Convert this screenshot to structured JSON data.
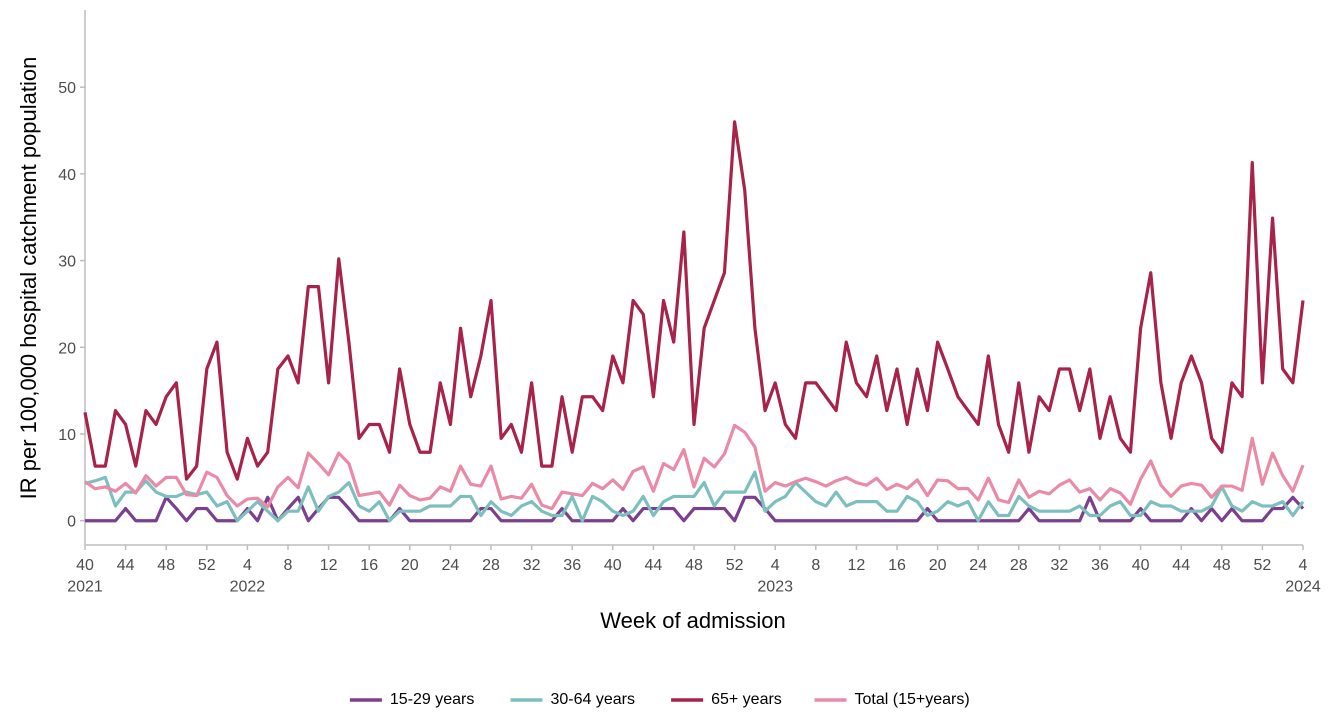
{
  "chart_data": {
    "type": "line",
    "x_label": "Week of admission",
    "y_label": "IR per 100,000 hospital catchment population",
    "categories": [
      "40\n2021",
      null,
      null,
      null,
      "44",
      null,
      null,
      null,
      "48",
      null,
      null,
      null,
      "52",
      null,
      null,
      null,
      "4\n2022",
      null,
      null,
      null,
      "8",
      null,
      null,
      null,
      "12",
      null,
      null,
      null,
      "16",
      null,
      null,
      null,
      "20",
      null,
      null,
      null,
      "24",
      null,
      null,
      null,
      "28",
      null,
      null,
      null,
      "32",
      null,
      null,
      null,
      "36",
      null,
      null,
      null,
      "40",
      null,
      null,
      null,
      "44",
      null,
      null,
      null,
      "48",
      null,
      null,
      null,
      "52",
      null,
      null,
      null,
      "4\n2023",
      null,
      null,
      null,
      "8",
      null,
      null,
      null,
      "12",
      null,
      null,
      null,
      "16",
      null,
      null,
      null,
      "20",
      null,
      null,
      null,
      "24",
      null,
      null,
      null,
      "28",
      null,
      null,
      null,
      "32",
      null,
      null,
      null,
      "36",
      null,
      null,
      null,
      "40",
      null,
      null,
      null,
      "44",
      null,
      null,
      null,
      "48",
      null,
      null,
      null,
      "52",
      null,
      null,
      null,
      "4\n2024"
    ],
    "series": [
      {
        "name": "15-29 years",
        "color": "#7b3f8f",
        "values": [
          0,
          0,
          0,
          0,
          1.4,
          0,
          0,
          0,
          2.7,
          1.4,
          0,
          1.4,
          1.4,
          0,
          0,
          0,
          1.4,
          0,
          2.7,
          0,
          1.4,
          2.7,
          0,
          1.4,
          2.7,
          2.7,
          1.4,
          0,
          0,
          0,
          0,
          1.4,
          0,
          0,
          0,
          0,
          0,
          0,
          0,
          1.4,
          1.4,
          0,
          0,
          0,
          0,
          0,
          0,
          1.4,
          0,
          0,
          0,
          0,
          0,
          1.4,
          0,
          1.4,
          1.4,
          1.4,
          1.4,
          0,
          1.4,
          1.4,
          1.4,
          1.4,
          0,
          2.7,
          2.7,
          1.4,
          0,
          0,
          0,
          0,
          0,
          0,
          0,
          0,
          0,
          0,
          0,
          0,
          0,
          0,
          0,
          1.4,
          0,
          0,
          0,
          0,
          0,
          0,
          0,
          0,
          0,
          1.4,
          0,
          0,
          0,
          0,
          0,
          2.7,
          0,
          0,
          0,
          0,
          1.4,
          0,
          0,
          0,
          0,
          1.4,
          0,
          1.4,
          0,
          1.4,
          0,
          0,
          0,
          1.4,
          1.4,
          2.7,
          1.4
        ]
      },
      {
        "name": "30-64 years",
        "color": "#7dbfbf",
        "values": [
          4.3,
          4.6,
          5.0,
          1.7,
          3.3,
          3.3,
          4.6,
          3.3,
          2.8,
          2.8,
          3.3,
          3.0,
          3.3,
          1.7,
          2.2,
          0.0,
          1.1,
          2.2,
          1.1,
          0.0,
          1.1,
          1.1,
          3.9,
          1.1,
          2.8,
          3.3,
          4.4,
          1.7,
          1.1,
          2.2,
          0.0,
          1.1,
          1.1,
          1.1,
          1.7,
          1.7,
          1.7,
          2.8,
          2.8,
          0.6,
          2.2,
          1.1,
          0.6,
          1.7,
          2.2,
          1.1,
          0.6,
          0.6,
          2.8,
          0.0,
          2.8,
          2.2,
          1.1,
          0.6,
          1.1,
          2.8,
          0.6,
          2.2,
          2.8,
          2.8,
          2.8,
          4.4,
          1.7,
          3.3,
          3.3,
          3.3,
          5.6,
          1.1,
          2.2,
          2.8,
          4.4,
          3.3,
          2.2,
          1.7,
          3.3,
          1.7,
          2.2,
          2.2,
          2.2,
          1.1,
          1.1,
          2.8,
          2.2,
          0.6,
          1.1,
          2.2,
          1.7,
          2.2,
          0.0,
          2.2,
          0.6,
          0.6,
          2.8,
          1.7,
          1.1,
          1.1,
          1.1,
          1.1,
          1.7,
          0.6,
          0.6,
          1.7,
          2.2,
          0.6,
          0.6,
          2.2,
          1.7,
          1.7,
          1.1,
          1.1,
          1.1,
          1.7,
          3.9,
          1.7,
          1.1,
          2.2,
          1.7,
          1.7,
          2.2,
          0.6,
          2.2
        ]
      },
      {
        "name": "65+ years",
        "color": "#a8234a",
        "values": [
          12.5,
          6.3,
          6.3,
          12.7,
          11.1,
          6.3,
          12.7,
          11.1,
          14.3,
          15.9,
          4.8,
          6.3,
          17.5,
          20.6,
          7.9,
          4.8,
          9.5,
          6.3,
          7.9,
          17.5,
          19.0,
          15.9,
          27.0,
          27.0,
          15.9,
          30.2,
          20.6,
          9.5,
          11.1,
          11.1,
          7.9,
          17.5,
          11.1,
          7.9,
          7.9,
          15.9,
          11.1,
          22.2,
          14.3,
          19.0,
          25.4,
          9.5,
          11.1,
          7.9,
          15.9,
          6.3,
          6.3,
          14.3,
          7.9,
          14.3,
          14.3,
          12.7,
          19.0,
          15.9,
          25.4,
          23.8,
          14.3,
          25.4,
          20.6,
          33.3,
          11.1,
          22.2,
          25.4,
          28.6,
          46.0,
          38.1,
          22.2,
          12.7,
          15.9,
          11.1,
          9.5,
          15.9,
          15.9,
          14.3,
          12.7,
          20.6,
          15.9,
          14.3,
          19.0,
          12.7,
          17.5,
          11.1,
          17.5,
          12.7,
          20.6,
          17.5,
          14.3,
          12.7,
          11.1,
          19.0,
          11.1,
          7.9,
          15.9,
          7.9,
          14.3,
          12.7,
          17.5,
          17.5,
          12.7,
          17.5,
          9.5,
          14.3,
          9.5,
          7.9,
          22.2,
          28.6,
          15.9,
          9.5,
          15.9,
          19.0,
          15.9,
          9.5,
          7.9,
          15.9,
          14.3,
          41.3,
          15.9,
          34.9,
          17.5,
          15.9,
          25.4
        ]
      },
      {
        "name": "Total (15+years)",
        "color": "#e98aa6",
        "values": [
          4.5,
          3.7,
          3.9,
          3.4,
          4.3,
          3.2,
          5.2,
          4.0,
          5.0,
          5.0,
          3.0,
          2.9,
          5.6,
          5.0,
          2.9,
          1.7,
          2.5,
          2.6,
          1.6,
          3.9,
          5.0,
          3.8,
          7.8,
          6.6,
          5.3,
          7.8,
          6.6,
          2.9,
          3.1,
          3.3,
          1.8,
          4.1,
          2.9,
          2.4,
          2.6,
          3.9,
          3.4,
          6.3,
          4.2,
          4.0,
          6.3,
          2.5,
          2.8,
          2.6,
          4.2,
          1.8,
          1.4,
          3.3,
          3.1,
          2.9,
          4.3,
          3.7,
          4.7,
          3.6,
          5.7,
          6.2,
          3.4,
          6.6,
          5.9,
          8.2,
          3.9,
          7.2,
          6.2,
          7.7,
          11.0,
          10.2,
          8.5,
          3.4,
          4.4,
          4.0,
          4.5,
          4.9,
          4.5,
          4.0,
          4.6,
          5.0,
          4.4,
          4.1,
          4.9,
          3.6,
          4.2,
          3.7,
          4.7,
          2.9,
          4.7,
          4.6,
          3.7,
          3.7,
          2.4,
          4.9,
          2.4,
          2.1,
          4.7,
          2.7,
          3.4,
          3.1,
          4.1,
          4.7,
          3.3,
          3.7,
          2.4,
          3.7,
          3.2,
          1.9,
          4.8,
          6.9,
          4.1,
          2.8,
          4.0,
          4.3,
          4.1,
          2.7,
          4.0,
          4.0,
          3.5,
          9.5,
          4.2,
          7.8,
          5.2,
          3.4,
          6.4
        ]
      }
    ],
    "ylim": [
      -2.8,
      58.9
    ],
    "yticks": [
      0,
      10,
      20,
      30,
      40,
      50
    ],
    "grid": false,
    "legend": "bottom"
  }
}
